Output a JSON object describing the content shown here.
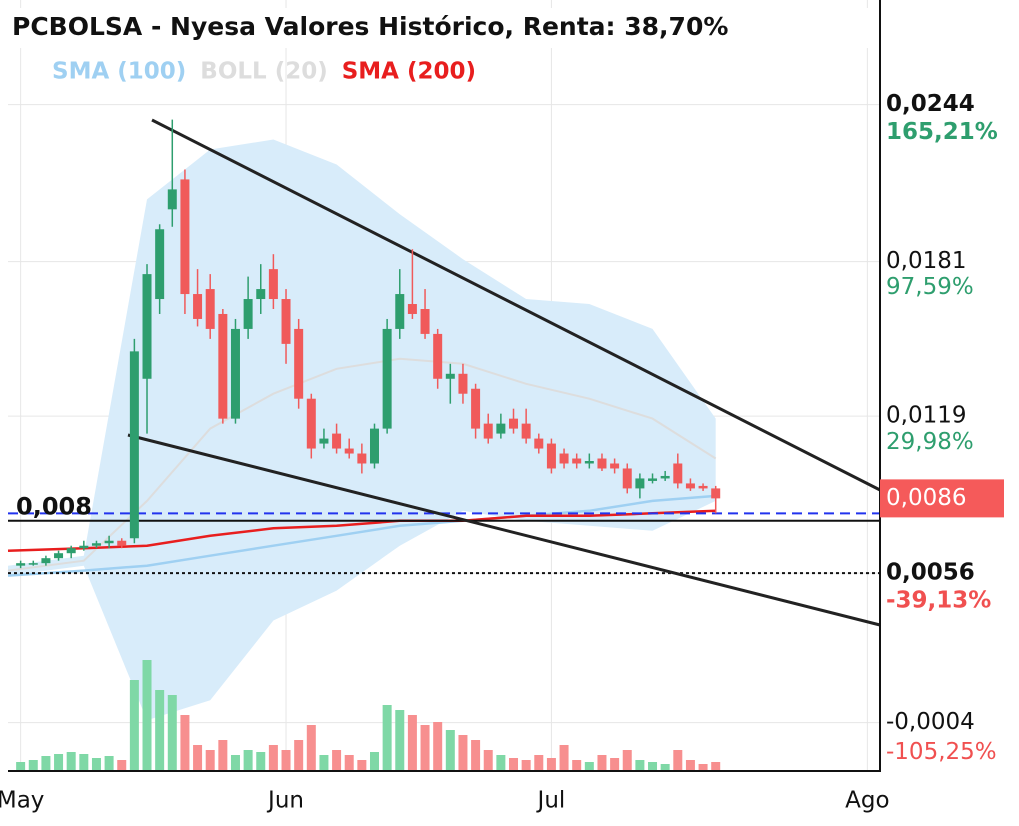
{
  "chart_data": {
    "type": "candlestick",
    "title": "PCBOLSA - Nyesa Valores Histórico, Renta: 38,70%",
    "up_color": "#2e9e6e",
    "down_color": "#f05a5a",
    "volume_up_color": "#7fd8a6",
    "volume_down_color": "#f78f8f",
    "open": [
      0.0059,
      0.006,
      0.006,
      0.0062,
      0.0064,
      0.0066,
      0.0067,
      0.0068,
      0.0069,
      0.007,
      0.0134,
      0.0166,
      0.0202,
      0.0214,
      0.0168,
      0.017,
      0.016,
      0.0118,
      0.0154,
      0.0166,
      0.0178,
      0.0166,
      0.0154,
      0.0126,
      0.0108,
      0.0112,
      0.0106,
      0.0104,
      0.01,
      0.0114,
      0.0154,
      0.0164,
      0.0162,
      0.0152,
      0.0134,
      0.0136,
      0.013,
      0.0116,
      0.0112,
      0.0118,
      0.0116,
      0.011,
      0.0108,
      0.0104,
      0.0102,
      0.01,
      0.0102,
      0.01,
      0.0098,
      0.009,
      0.0093,
      0.0094,
      0.01,
      0.0092,
      0.0091,
      0.009
    ],
    "high": [
      0.0061,
      0.0061,
      0.0063,
      0.0065,
      0.0067,
      0.0069,
      0.0069,
      0.0071,
      0.007,
      0.015,
      0.018,
      0.0196,
      0.0238,
      0.0218,
      0.0178,
      0.0176,
      0.0162,
      0.0158,
      0.0175,
      0.018,
      0.0184,
      0.017,
      0.0158,
      0.0128,
      0.0114,
      0.0116,
      0.011,
      0.0108,
      0.0116,
      0.0158,
      0.0178,
      0.0186,
      0.017,
      0.0154,
      0.014,
      0.014,
      0.0132,
      0.012,
      0.012,
      0.0122,
      0.0122,
      0.0112,
      0.011,
      0.0106,
      0.0104,
      0.0104,
      0.0104,
      0.0102,
      0.01,
      0.0096,
      0.0096,
      0.0097,
      0.0104,
      0.0094,
      0.0092,
      0.0091
    ],
    "low": [
      0.0058,
      0.0059,
      0.0059,
      0.0061,
      0.0062,
      0.0065,
      0.0066,
      0.0066,
      0.0066,
      0.0068,
      0.0112,
      0.016,
      0.0195,
      0.016,
      0.0155,
      0.015,
      0.0116,
      0.0116,
      0.015,
      0.016,
      0.0162,
      0.014,
      0.0122,
      0.0102,
      0.0106,
      0.0104,
      0.0102,
      0.0096,
      0.0098,
      0.0112,
      0.015,
      0.0158,
      0.015,
      0.013,
      0.0124,
      0.0124,
      0.011,
      0.0108,
      0.011,
      0.0112,
      0.0108,
      0.0104,
      0.0096,
      0.0098,
      0.0098,
      0.0098,
      0.0097,
      0.0096,
      0.0088,
      0.0086,
      0.0092,
      0.0093,
      0.009,
      0.0089,
      0.0089,
      0.008
    ],
    "close": [
      0.006,
      0.006,
      0.0062,
      0.0064,
      0.0066,
      0.0067,
      0.0068,
      0.0069,
      0.0067,
      0.0145,
      0.0176,
      0.0194,
      0.021,
      0.0168,
      0.0158,
      0.0154,
      0.0118,
      0.0154,
      0.0166,
      0.017,
      0.0166,
      0.0148,
      0.0126,
      0.0106,
      0.011,
      0.0106,
      0.0104,
      0.01,
      0.0114,
      0.0154,
      0.0168,
      0.016,
      0.0152,
      0.0134,
      0.0136,
      0.0128,
      0.0114,
      0.011,
      0.0116,
      0.0114,
      0.011,
      0.0106,
      0.0098,
      0.01,
      0.01,
      0.0101,
      0.0098,
      0.0098,
      0.009,
      0.0094,
      0.0094,
      0.0095,
      0.0092,
      0.009,
      0.009,
      0.0086
    ],
    "volume": [
      8,
      10,
      14,
      16,
      18,
      16,
      12,
      14,
      10,
      90,
      110,
      80,
      75,
      55,
      25,
      20,
      30,
      15,
      20,
      18,
      25,
      20,
      30,
      45,
      15,
      20,
      15,
      10,
      18,
      65,
      60,
      55,
      45,
      48,
      40,
      35,
      30,
      20,
      15,
      12,
      10,
      15,
      12,
      25,
      10,
      8,
      15,
      12,
      20,
      10,
      8,
      6,
      20,
      10,
      6,
      8
    ],
    "series": [
      {
        "name": "SMA (100)",
        "color": "#9fd0f2",
        "x": [
          -1,
          5,
          10,
          15,
          20,
          25,
          30,
          35,
          40,
          45,
          50,
          55
        ],
        "values": [
          0.0055,
          0.0057,
          0.0059,
          0.0063,
          0.0067,
          0.0071,
          0.0075,
          0.0077,
          0.0079,
          0.0081,
          0.0085,
          0.0087
        ]
      },
      {
        "name": "BOLL (20)",
        "color": "#dddddd",
        "fill": "#d8ecfa",
        "x": [
          -1,
          5,
          10,
          15,
          20,
          25,
          30,
          35,
          40,
          45,
          50,
          55
        ],
        "values": [
          0.0057,
          0.0061,
          0.0085,
          0.0114,
          0.0128,
          0.0138,
          0.0142,
          0.014,
          0.0132,
          0.0126,
          0.0118,
          0.0102
        ],
        "upper": [
          0.0059,
          0.0063,
          0.0206,
          0.0226,
          0.023,
          0.022,
          0.02,
          0.0182,
          0.0166,
          0.0164,
          0.0154,
          0.0118
        ],
        "lower": [
          0.0055,
          0.0059,
          -0.0003,
          0.0005,
          0.0037,
          0.0049,
          0.0067,
          0.0081,
          0.0077,
          0.0075,
          0.0073,
          0.0085
        ]
      },
      {
        "name": "SMA (200)",
        "color": "#e81e1e",
        "x": [
          -1,
          5,
          10,
          15,
          20,
          25,
          30,
          35,
          40,
          45,
          50,
          55
        ],
        "values": [
          0.0065,
          0.0066,
          0.0067,
          0.0071,
          0.0074,
          0.0075,
          0.0077,
          0.0077,
          0.0079,
          0.0079,
          0.008,
          0.0081
        ]
      }
    ],
    "hlines": [
      {
        "value": 0.008,
        "label": "0,008",
        "style": "dashed",
        "color": "#2233ee"
      },
      {
        "value": 0.0077,
        "style": "solid",
        "color": "#111111"
      },
      {
        "value": 0.0056,
        "style": "dotted",
        "color": "#111111"
      }
    ],
    "price_tag": {
      "value": 0.0086,
      "label": "0,0086",
      "color": "#f55a5a"
    },
    "xlim": [
      -1,
      68
    ],
    "xticks": [
      {
        "value": 0,
        "label": "May"
      },
      {
        "value": 21,
        "label": "Jun"
      },
      {
        "value": 42,
        "label": "Jul"
      },
      {
        "value": 67,
        "label": "Ago"
      }
    ],
    "ylim": [
      -0.0023,
      0.0286
    ],
    "yticks": [
      {
        "value": 0.0244,
        "label": "0,0244"
      },
      {
        "value": 0.0181,
        "label": "0,0181"
      },
      {
        "value": 0.0119,
        "label": "0,0119"
      },
      {
        "value": 0.0056,
        "label": "0,0056"
      },
      {
        "value": -0.0004,
        "label": "-0,0004"
      }
    ],
    "bold_ticks": [
      0,
      3
    ],
    "y2lim": [
      -125,
      210.9
    ],
    "y2ticks": [
      {
        "value": 165.21,
        "label": "165,21%"
      },
      {
        "value": 97.59,
        "label": "97,59%"
      },
      {
        "value": 29.98,
        "label": "29,98%"
      },
      {
        "value": -39.13,
        "label": "-39,13%"
      },
      {
        "value": -105.25,
        "label": "-105,25%"
      }
    ],
    "grid": true
  }
}
